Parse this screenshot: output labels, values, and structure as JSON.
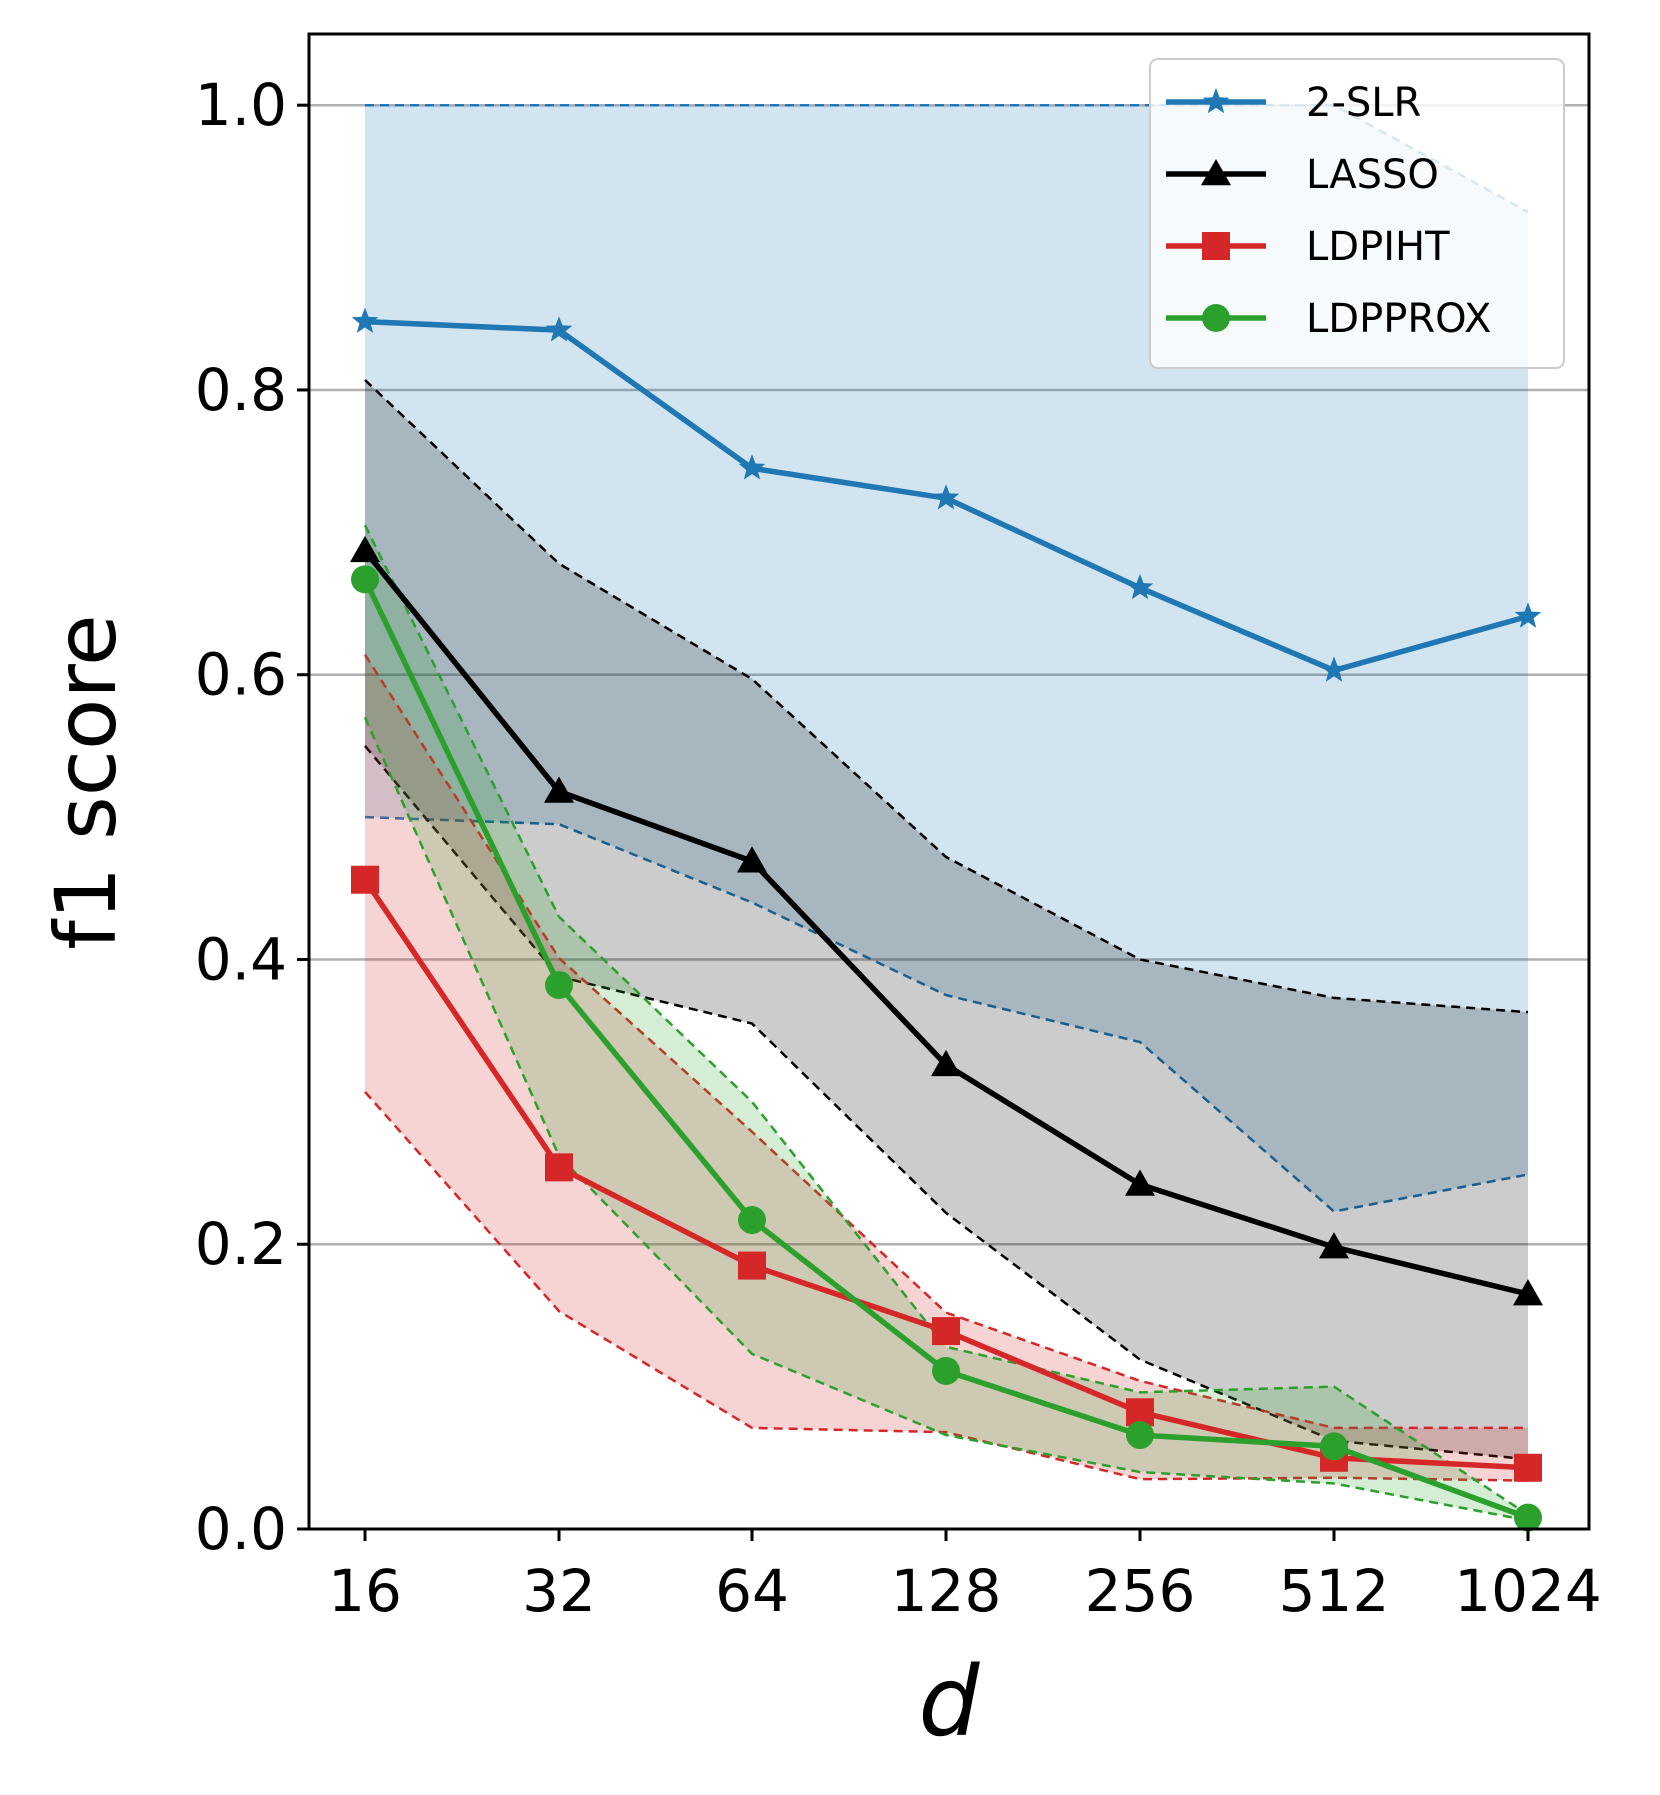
{
  "chart_data": {
    "type": "line",
    "title": "",
    "xlabel": "d",
    "ylabel": "f1 score",
    "categories": [
      "16",
      "32",
      "64",
      "128",
      "256",
      "512",
      "1024"
    ],
    "ylim": [
      0.0,
      1.05
    ],
    "yticks": [
      "0.0",
      "0.2",
      "0.4",
      "0.6",
      "0.8",
      "1.0"
    ],
    "ytick_values": [
      0.0,
      0.2,
      0.4,
      0.6,
      0.8,
      1.0
    ],
    "grid": "horizontal",
    "legend_position": "top-right",
    "series": [
      {
        "name": "2-SLR",
        "color": "#1f77b4",
        "marker": "star",
        "values": [
          0.848,
          0.842,
          0.745,
          0.724,
          0.661,
          0.603,
          0.641
        ],
        "band_upper": [
          1.0,
          1.0,
          1.0,
          1.0,
          1.0,
          1.0,
          0.925
        ],
        "band_lower": [
          0.5,
          0.495,
          0.44,
          0.375,
          0.342,
          0.223,
          0.249
        ],
        "band_opacity": 0.2
      },
      {
        "name": "LASSO",
        "color": "#000000",
        "marker": "triangle",
        "values": [
          0.687,
          0.518,
          0.469,
          0.326,
          0.242,
          0.198,
          0.165
        ],
        "band_upper": [
          0.807,
          0.678,
          0.597,
          0.472,
          0.4,
          0.373,
          0.363
        ],
        "band_lower": [
          0.55,
          0.388,
          0.355,
          0.222,
          0.119,
          0.062,
          0.049
        ],
        "band_opacity": 0.2
      },
      {
        "name": "LDPIHT",
        "color": "#d62728",
        "marker": "square",
        "values": [
          0.456,
          0.254,
          0.185,
          0.139,
          0.082,
          0.05,
          0.043
        ],
        "band_upper": [
          0.614,
          0.401,
          0.279,
          0.152,
          0.104,
          0.071,
          0.071
        ],
        "band_lower": [
          0.307,
          0.153,
          0.071,
          0.068,
          0.035,
          0.036,
          0.034
        ],
        "band_opacity": 0.2
      },
      {
        "name": "LDPPROX",
        "color": "#2ca02c",
        "marker": "circle",
        "values": [
          0.667,
          0.382,
          0.217,
          0.111,
          0.066,
          0.058,
          0.008
        ],
        "band_upper": [
          0.705,
          0.43,
          0.3,
          0.128,
          0.096,
          0.1,
          0.01
        ],
        "band_lower": [
          0.57,
          0.262,
          0.123,
          0.066,
          0.04,
          0.032,
          0.006
        ],
        "band_opacity": 0.2
      }
    ]
  }
}
